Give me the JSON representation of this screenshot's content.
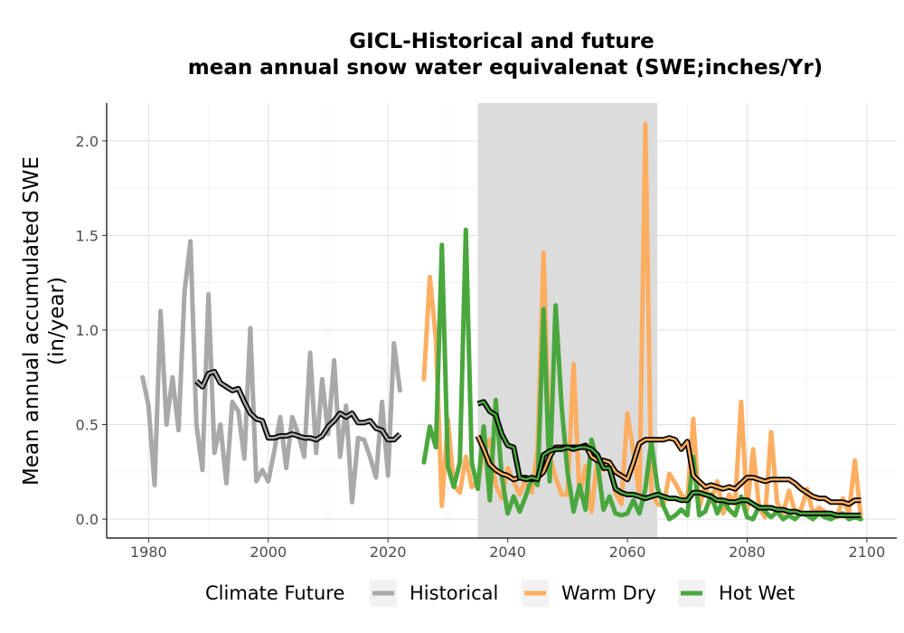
{
  "chart_data": {
    "type": "line",
    "title": "GICL-Historical and future",
    "subtitle": "mean annual snow water equivalenat (SWE;inches/Yr)",
    "xlabel": "",
    "ylabel_line1": "Mean annual accumulated SWE",
    "ylabel_line2": "(in/year)",
    "xlim": [
      1973,
      2105
    ],
    "ylim": [
      -0.1,
      2.2
    ],
    "x_ticks": [
      1980,
      2000,
      2020,
      2040,
      2060,
      2080,
      2100
    ],
    "y_ticks": [
      0.0,
      0.5,
      1.0,
      1.5,
      2.0
    ],
    "x_tick_labels": [
      "1980",
      "2000",
      "2020",
      "2040",
      "2060",
      "2080",
      "2100"
    ],
    "y_tick_labels": [
      "0.0",
      "0.5",
      "1.0",
      "1.5",
      "2.0"
    ],
    "grid": true,
    "shaded_period": [
      2035,
      2065
    ],
    "legend": {
      "title": "Climate Future",
      "position": "bottom",
      "entries": [
        "Historical",
        "Warm Dry",
        "Hot Wet"
      ]
    },
    "colors": {
      "Historical": "#a9a9a9",
      "Warm Dry": "#fdae61",
      "Hot Wet": "#4aa73e",
      "shade": "#dcdcdc",
      "smooth_outline": "#000000"
    },
    "series": [
      {
        "name": "Historical",
        "x": [
          1979,
          1980,
          1981,
          1982,
          1983,
          1984,
          1985,
          1986,
          1987,
          1988,
          1989,
          1990,
          1991,
          1992,
          1993,
          1994,
          1995,
          1996,
          1997,
          1998,
          1999,
          2000,
          2001,
          2002,
          2003,
          2004,
          2005,
          2006,
          2007,
          2008,
          2009,
          2010,
          2011,
          2012,
          2013,
          2014,
          2015,
          2016,
          2017,
          2018,
          2019,
          2020,
          2021,
          2022
        ],
        "values": [
          0.75,
          0.6,
          0.18,
          1.1,
          0.5,
          0.75,
          0.47,
          1.2,
          1.47,
          0.5,
          0.26,
          1.19,
          0.35,
          0.5,
          0.19,
          0.62,
          0.57,
          0.32,
          1.01,
          0.2,
          0.26,
          0.2,
          0.36,
          0.54,
          0.27,
          0.54,
          0.45,
          0.33,
          0.88,
          0.35,
          0.74,
          0.45,
          0.84,
          0.33,
          0.6,
          0.09,
          0.43,
          0.42,
          0.33,
          0.22,
          0.62,
          0.23,
          0.93,
          0.68
        ]
      },
      {
        "name": "Warm Dry",
        "x": [
          2026,
          2027,
          2028,
          2029,
          2030,
          2031,
          2032,
          2033,
          2034,
          2035,
          2036,
          2037,
          2038,
          2039,
          2040,
          2041,
          2042,
          2043,
          2044,
          2045,
          2046,
          2047,
          2048,
          2049,
          2050,
          2051,
          2052,
          2053,
          2054,
          2055,
          2056,
          2057,
          2058,
          2059,
          2060,
          2061,
          2062,
          2063,
          2064,
          2065,
          2066,
          2067,
          2068,
          2069,
          2070,
          2071,
          2072,
          2073,
          2074,
          2075,
          2076,
          2077,
          2078,
          2079,
          2080,
          2081,
          2082,
          2083,
          2084,
          2085,
          2086,
          2087,
          2088,
          2089,
          2090,
          2091,
          2092,
          2093,
          2094,
          2095,
          2096,
          2097,
          2098,
          2099
        ],
        "values": [
          0.74,
          1.28,
          0.95,
          0.07,
          0.53,
          0.18,
          0.14,
          0.33,
          0.17,
          0.2,
          0.36,
          0.42,
          0.18,
          0.11,
          0.27,
          0.2,
          0.13,
          0.21,
          0.14,
          0.37,
          1.41,
          0.34,
          0.22,
          0.13,
          0.13,
          0.82,
          0.12,
          0.28,
          0.04,
          0.32,
          0.26,
          0.3,
          0.14,
          0.08,
          0.56,
          0.35,
          0.12,
          2.09,
          0.15,
          0.08,
          0.07,
          0.24,
          0.19,
          0.13,
          0.1,
          0.53,
          0.06,
          0.18,
          0.09,
          0.2,
          0.03,
          0.13,
          0.08,
          0.62,
          0.05,
          0.37,
          0.06,
          0.01,
          0.46,
          0.09,
          0.03,
          0.15,
          0.04,
          0.05,
          0.16,
          0.03,
          0.06,
          0.04,
          0.01,
          0.01,
          0.11,
          0.03,
          0.31,
          0.01
        ]
      },
      {
        "name": "Hot Wet",
        "x": [
          2026,
          2027,
          2028,
          2029,
          2030,
          2031,
          2032,
          2033,
          2034,
          2035,
          2036,
          2037,
          2038,
          2039,
          2040,
          2041,
          2042,
          2043,
          2044,
          2045,
          2046,
          2047,
          2048,
          2049,
          2050,
          2051,
          2052,
          2053,
          2054,
          2055,
          2056,
          2057,
          2058,
          2059,
          2060,
          2061,
          2062,
          2063,
          2064,
          2065,
          2066,
          2067,
          2068,
          2069,
          2070,
          2071,
          2072,
          2073,
          2074,
          2075,
          2076,
          2077,
          2078,
          2079,
          2080,
          2081,
          2082,
          2083,
          2084,
          2085,
          2086,
          2087,
          2088,
          2089,
          2090,
          2091,
          2092,
          2093,
          2094,
          2095,
          2096,
          2097,
          2098,
          2099
        ],
        "values": [
          0.3,
          0.49,
          0.38,
          1.45,
          0.28,
          0.17,
          0.3,
          1.53,
          0.3,
          0.16,
          0.49,
          0.1,
          0.63,
          0.23,
          0.03,
          0.12,
          0.04,
          0.12,
          0.22,
          0.18,
          1.11,
          0.2,
          1.13,
          0.6,
          0.25,
          0.04,
          0.18,
          0.05,
          0.42,
          0.3,
          0.05,
          0.12,
          0.03,
          0.02,
          0.03,
          0.1,
          0.03,
          0.16,
          0.41,
          0.17,
          0.07,
          0.0,
          0.02,
          0.05,
          0.02,
          0.33,
          0.02,
          0.04,
          0.13,
          0.03,
          0.1,
          0.05,
          0.02,
          0.12,
          0.01,
          0.0,
          0.07,
          0.04,
          0.01,
          0.04,
          0.0,
          0.02,
          0.0,
          0.03,
          0.02,
          0.0,
          0.03,
          0.01,
          0.0,
          0.02,
          0.03,
          0.0,
          0.01,
          0.0
        ]
      },
      {
        "name": "Historical 10-yr moving average",
        "x": [
          1988,
          1989,
          1990,
          1991,
          1992,
          1993,
          1994,
          1995,
          1996,
          1997,
          1998,
          1999,
          2000,
          2001,
          2002,
          2003,
          2004,
          2005,
          2006,
          2007,
          2008,
          2009,
          2010,
          2011,
          2012,
          2013,
          2014,
          2015,
          2016,
          2017,
          2018,
          2019,
          2020,
          2021,
          2022
        ],
        "values": [
          0.73,
          0.7,
          0.77,
          0.78,
          0.72,
          0.7,
          0.68,
          0.69,
          0.62,
          0.56,
          0.53,
          0.52,
          0.43,
          0.43,
          0.44,
          0.44,
          0.45,
          0.44,
          0.43,
          0.43,
          0.42,
          0.44,
          0.49,
          0.52,
          0.56,
          0.54,
          0.56,
          0.51,
          0.51,
          0.52,
          0.48,
          0.47,
          0.42,
          0.42,
          0.45
        ]
      },
      {
        "name": "Warm Dry 10-yr moving average",
        "x": [
          2035,
          2036,
          2037,
          2038,
          2039,
          2040,
          2041,
          2042,
          2043,
          2044,
          2045,
          2046,
          2047,
          2048,
          2049,
          2050,
          2051,
          2052,
          2053,
          2054,
          2055,
          2056,
          2057,
          2058,
          2059,
          2060,
          2061,
          2062,
          2063,
          2064,
          2065,
          2066,
          2067,
          2068,
          2069,
          2070,
          2071,
          2072,
          2073,
          2074,
          2075,
          2076,
          2077,
          2078,
          2079,
          2080,
          2081,
          2082,
          2083,
          2084,
          2085,
          2086,
          2087,
          2088,
          2089,
          2090,
          2091,
          2092,
          2093,
          2094,
          2095,
          2096,
          2097,
          2098,
          2099
        ],
        "values": [
          0.44,
          0.37,
          0.29,
          0.26,
          0.24,
          0.23,
          0.21,
          0.22,
          0.22,
          0.21,
          0.22,
          0.25,
          0.33,
          0.38,
          0.38,
          0.38,
          0.38,
          0.38,
          0.39,
          0.33,
          0.31,
          0.31,
          0.3,
          0.25,
          0.23,
          0.21,
          0.3,
          0.4,
          0.42,
          0.42,
          0.42,
          0.42,
          0.43,
          0.42,
          0.37,
          0.41,
          0.23,
          0.2,
          0.17,
          0.18,
          0.17,
          0.16,
          0.17,
          0.16,
          0.19,
          0.22,
          0.22,
          0.21,
          0.2,
          0.21,
          0.21,
          0.21,
          0.21,
          0.19,
          0.16,
          0.14,
          0.12,
          0.11,
          0.11,
          0.09,
          0.09,
          0.09,
          0.08,
          0.1,
          0.1
        ]
      },
      {
        "name": "Hot Wet 10-yr moving average",
        "x": [
          2035,
          2036,
          2037,
          2038,
          2039,
          2040,
          2041,
          2042,
          2043,
          2044,
          2045,
          2046,
          2047,
          2048,
          2049,
          2050,
          2051,
          2052,
          2053,
          2054,
          2055,
          2056,
          2057,
          2058,
          2059,
          2060,
          2061,
          2062,
          2063,
          2064,
          2065,
          2066,
          2067,
          2068,
          2069,
          2070,
          2071,
          2072,
          2073,
          2074,
          2075,
          2076,
          2077,
          2078,
          2079,
          2080,
          2081,
          2082,
          2083,
          2084,
          2085,
          2086,
          2087,
          2088,
          2089,
          2090,
          2091,
          2092,
          2093,
          2094,
          2095,
          2096,
          2097,
          2098,
          2099
        ],
        "values": [
          0.61,
          0.62,
          0.57,
          0.55,
          0.45,
          0.39,
          0.38,
          0.22,
          0.21,
          0.22,
          0.21,
          0.34,
          0.36,
          0.37,
          0.37,
          0.38,
          0.37,
          0.38,
          0.38,
          0.37,
          0.34,
          0.27,
          0.27,
          0.16,
          0.14,
          0.13,
          0.13,
          0.12,
          0.11,
          0.12,
          0.13,
          0.12,
          0.11,
          0.11,
          0.1,
          0.1,
          0.14,
          0.14,
          0.13,
          0.12,
          0.1,
          0.1,
          0.09,
          0.09,
          0.1,
          0.1,
          0.08,
          0.06,
          0.06,
          0.06,
          0.05,
          0.05,
          0.04,
          0.04,
          0.03,
          0.03,
          0.03,
          0.03,
          0.03,
          0.03,
          0.02,
          0.02,
          0.02,
          0.02,
          0.02
        ]
      }
    ]
  }
}
